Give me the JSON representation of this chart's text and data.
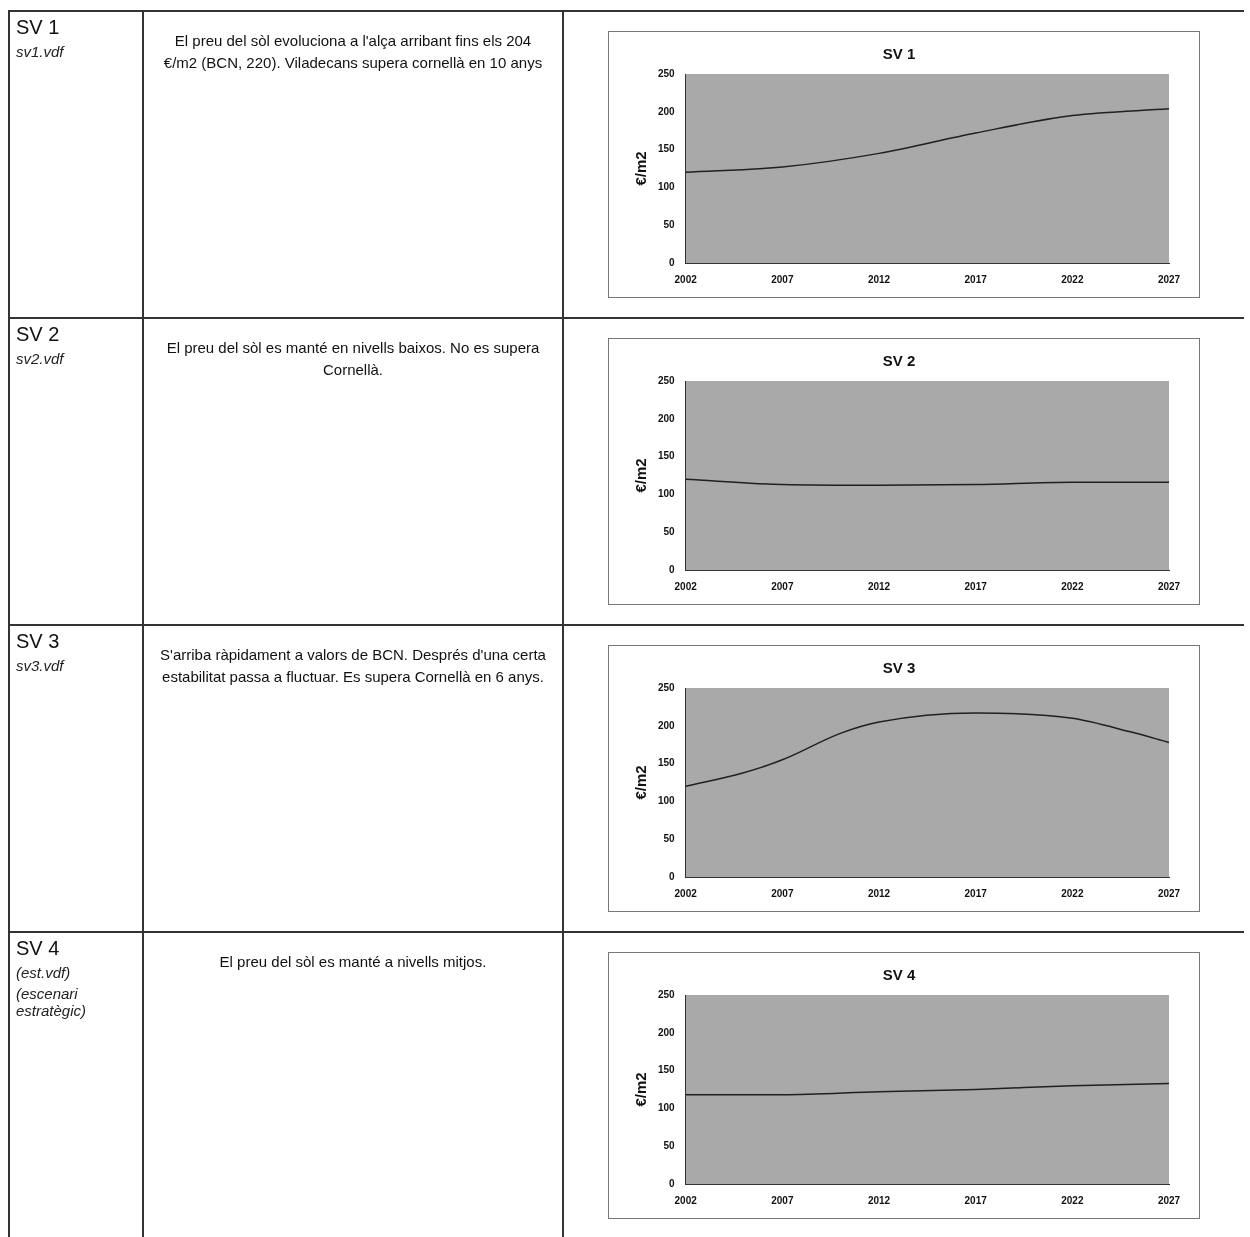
{
  "chart_data": [
    {
      "type": "line",
      "title": "SV 1",
      "ylabel": "€/m2",
      "x": [
        2002,
        2007,
        2012,
        2017,
        2022,
        2027
      ],
      "series": [
        {
          "color": "#202020",
          "values": [
            120,
            127,
            145,
            172,
            195,
            204
          ]
        }
      ],
      "xlim": [
        2002,
        2027
      ],
      "xticks": [
        2002,
        2007,
        2012,
        2017,
        2022,
        2027
      ],
      "ylim": [
        0,
        250
      ],
      "yticks": [
        0,
        50,
        100,
        150,
        200,
        250
      ],
      "grid": false,
      "legend": false,
      "marker": "none",
      "annotations": [
        "SV 1",
        "sv1.vdf",
        "El preu del sòl evoluciona a l'alça arribant fins els 204 €/m2 (BCN, 220). Viladecans supera cornellà en 10 anys"
      ]
    },
    {
      "type": "line",
      "title": "SV 2",
      "ylabel": "€/m2",
      "x": [
        2002,
        2007,
        2012,
        2017,
        2022,
        2027
      ],
      "series": [
        {
          "color": "#202020",
          "values": [
            120,
            113,
            112,
            113,
            116,
            116
          ]
        }
      ],
      "xlim": [
        2002,
        2027
      ],
      "xticks": [
        2002,
        2007,
        2012,
        2017,
        2022,
        2027
      ],
      "ylim": [
        0,
        250
      ],
      "yticks": [
        0,
        50,
        100,
        150,
        200,
        250
      ],
      "grid": false,
      "legend": false,
      "marker": "none",
      "annotations": [
        "SV 2",
        "sv2.vdf",
        "El preu del sòl es manté en nivells baixos. No es supera Cornellà."
      ]
    },
    {
      "type": "line",
      "title": "SV 3",
      "ylabel": "€/m2",
      "x": [
        2002,
        2005,
        2007,
        2010,
        2012,
        2017,
        2022,
        2025,
        2027
      ],
      "series": [
        {
          "color": "#202020",
          "values": [
            120,
            138,
            155,
            190,
            205,
            217,
            210,
            192,
            178
          ]
        }
      ],
      "xlim": [
        2002,
        2027
      ],
      "xticks": [
        2002,
        2007,
        2012,
        2017,
        2022,
        2027
      ],
      "ylim": [
        0,
        250
      ],
      "yticks": [
        0,
        50,
        100,
        150,
        200,
        250
      ],
      "grid": false,
      "legend": false,
      "marker": "none",
      "annotations": [
        "SV 3",
        "sv3.vdf",
        "S'arriba ràpidament a valors de BCN. Després d'una certa estabilitat passa a fluctuar. Es supera Cornellà en 6 anys."
      ]
    },
    {
      "type": "line",
      "title": "SV 4",
      "ylabel": "€/m2",
      "x": [
        2002,
        2007,
        2012,
        2017,
        2022,
        2027
      ],
      "series": [
        {
          "color": "#202020",
          "values": [
            118,
            118,
            122,
            125,
            130,
            133
          ]
        }
      ],
      "xlim": [
        2002,
        2027
      ],
      "xticks": [
        2002,
        2007,
        2012,
        2017,
        2022,
        2027
      ],
      "ylim": [
        0,
        250
      ],
      "yticks": [
        0,
        50,
        100,
        150,
        200,
        250
      ],
      "grid": false,
      "legend": false,
      "marker": "none",
      "annotations": [
        "SV 4",
        "(est.vdf)",
        "(escenari estratègic)",
        "El preu del sòl es manté a nivells mitjos."
      ]
    }
  ]
}
